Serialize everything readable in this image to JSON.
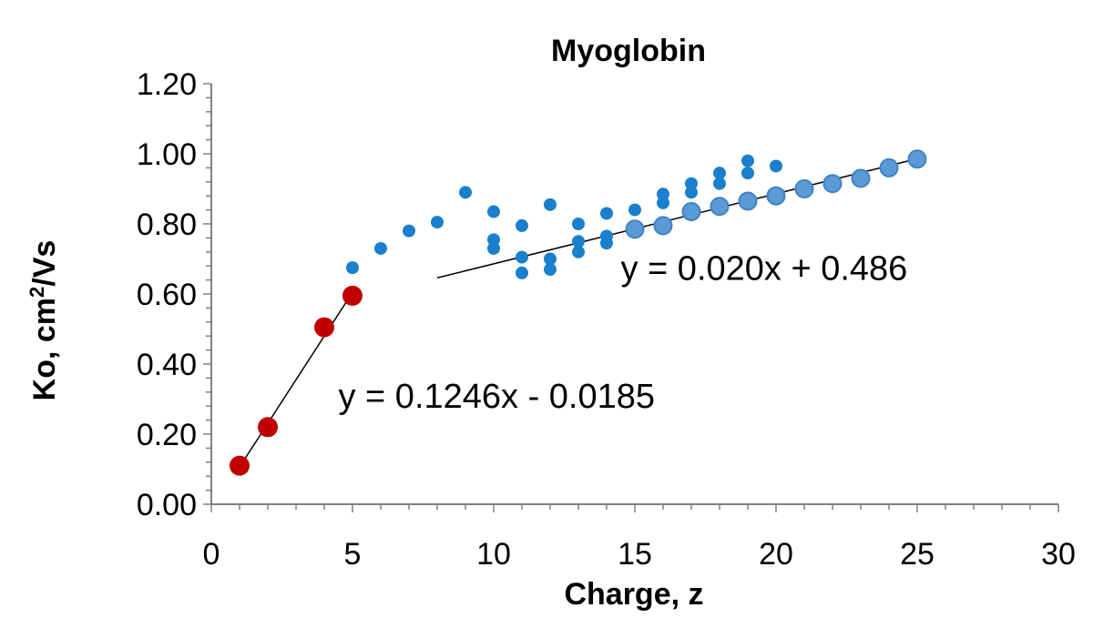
{
  "chart_data": {
    "type": "scatter",
    "title": "Myoglobin",
    "xlabel": "Charge, z",
    "ylabel_main": "Ko, cm",
    "ylabel_sup": "2",
    "ylabel_tail": "/Vs",
    "xlim": [
      0,
      30
    ],
    "ylim": [
      0,
      1.2
    ],
    "x_ticks": [
      "0",
      "5",
      "10",
      "15",
      "20",
      "25",
      "30"
    ],
    "y_ticks": [
      "0.00",
      "0.20",
      "0.40",
      "0.60",
      "0.80",
      "1.00",
      "1.20"
    ],
    "grid": false,
    "series": [
      {
        "color": "#c00000",
        "marker": "large",
        "points": [
          [
            1,
            0.11
          ],
          [
            2,
            0.22
          ],
          [
            4,
            0.505
          ],
          [
            5,
            0.595
          ]
        ]
      },
      {
        "color": "#1a7fcc",
        "marker": "small",
        "points": [
          [
            5,
            0.675
          ],
          [
            6,
            0.73
          ],
          [
            7,
            0.78
          ],
          [
            8,
            0.805
          ],
          [
            9,
            0.89
          ],
          [
            10,
            0.835
          ],
          [
            10,
            0.755
          ],
          [
            10,
            0.73
          ],
          [
            11,
            0.795
          ],
          [
            11,
            0.705
          ],
          [
            11,
            0.66
          ],
          [
            12,
            0.855
          ],
          [
            12,
            0.7
          ],
          [
            12,
            0.67
          ],
          [
            13,
            0.8
          ],
          [
            13,
            0.75
          ],
          [
            13,
            0.72
          ],
          [
            14,
            0.83
          ],
          [
            14,
            0.765
          ],
          [
            14,
            0.745
          ],
          [
            15,
            0.84
          ],
          [
            16,
            0.885
          ],
          [
            16,
            0.86
          ],
          [
            17,
            0.915
          ],
          [
            17,
            0.89
          ],
          [
            18,
            0.945
          ],
          [
            18,
            0.915
          ],
          [
            19,
            0.98
          ],
          [
            19,
            0.945
          ],
          [
            20,
            0.965
          ]
        ]
      },
      {
        "color": "#5b9bd5",
        "marker": "medium",
        "points": [
          [
            15,
            0.785
          ],
          [
            16,
            0.795
          ],
          [
            17,
            0.835
          ],
          [
            18,
            0.85
          ],
          [
            19,
            0.865
          ],
          [
            20,
            0.88
          ],
          [
            21,
            0.9
          ],
          [
            22,
            0.915
          ],
          [
            23,
            0.93
          ],
          [
            24,
            0.96
          ],
          [
            25,
            0.985
          ]
        ]
      }
    ],
    "trendlines": [
      {
        "slope": 0.1246,
        "intercept": -0.0185,
        "x_range": [
          1,
          5
        ],
        "equation": "y = 0.1246x - 0.0185"
      },
      {
        "slope": 0.02,
        "intercept": 0.486,
        "x_range": [
          8,
          25
        ],
        "equation": "y = 0.020x + 0.486"
      }
    ]
  }
}
